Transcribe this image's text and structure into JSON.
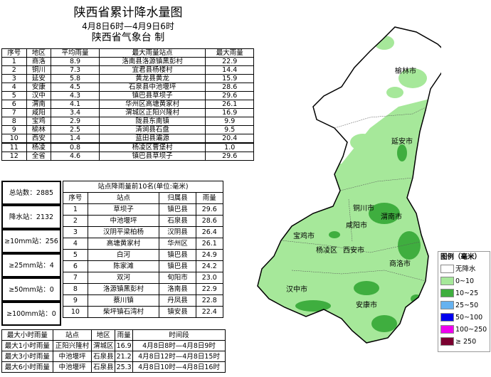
{
  "title": "陕西省累计降水量图",
  "period": "4月8日6时—4月9日6时",
  "producer": "陕西省气象台  制",
  "summary": {
    "headers": [
      "序号",
      "地区",
      "平均雨量",
      "最大雨量站点",
      "最大雨量"
    ],
    "rows": [
      [
        "1",
        "商洛",
        "8.9",
        "洛南县洛源镇黑彭村",
        "22.9"
      ],
      [
        "2",
        "铜川",
        "7.3",
        "宜君县杨楼村",
        "14.4"
      ],
      [
        "3",
        "延安",
        "5.8",
        "黄龙县黄龙",
        "15.9"
      ],
      [
        "4",
        "安康",
        "4.5",
        "石泉县中池堰坪",
        "28.6"
      ],
      [
        "5",
        "汉中",
        "4.3",
        "镇巴县草坝子",
        "29.6"
      ],
      [
        "6",
        "渭南",
        "4.1",
        "华州区高塘黄家村",
        "26.1"
      ],
      [
        "7",
        "咸阳",
        "3.4",
        "渭城区正阳兴隆村",
        "16.9"
      ],
      [
        "8",
        "宝鸡",
        "2.9",
        "陇县东南镇",
        "9.9"
      ],
      [
        "9",
        "榆林",
        "2.5",
        "清涧县石盘",
        "9.5"
      ],
      [
        "10",
        "西安",
        "1.4",
        "蓝田县灞源",
        "20.4"
      ],
      [
        "11",
        "杨凌",
        "0.8",
        "杨凌区曹堡村",
        "1.0"
      ],
      [
        "12",
        "全省",
        "4.6",
        "镇巴县草坝子",
        "29.6"
      ]
    ]
  },
  "stats": [
    "总站数：2885",
    "降水站：2132",
    "≥10mm站：256",
    "≥25mm站：4",
    "≥50mm站：0",
    "≥100mm站：0"
  ],
  "top10": {
    "caption": "站点降雨量前10名(单位:毫米)",
    "headers": [
      "序号",
      "站点",
      "归属县",
      "雨量"
    ],
    "rows": [
      [
        "1",
        "草坝子",
        "镇巴县",
        "29.6"
      ],
      [
        "2",
        "中池堰坪",
        "石泉县",
        "28.6"
      ],
      [
        "3",
        "汉阴平梁柏杨",
        "汉阴县",
        "26.4"
      ],
      [
        "4",
        "高塘黄家村",
        "华州区",
        "26.1"
      ],
      [
        "5",
        "白河",
        "镇巴县",
        "24.9"
      ],
      [
        "6",
        "陈家滩",
        "镇巴县",
        "24.2"
      ],
      [
        "7",
        "双河",
        "旬阳市",
        "23.0"
      ],
      [
        "8",
        "洛源镇黑彭村",
        "洛南县",
        "22.9"
      ],
      [
        "9",
        "蔡川镇",
        "丹凤县",
        "22.8"
      ],
      [
        "10",
        "柴坪镇石湾村",
        "镇安县",
        "22.4"
      ]
    ]
  },
  "max_hourly": {
    "headers": [
      "最大小时雨量",
      "站点",
      "地区",
      "雨量",
      "时间段"
    ],
    "rows": [
      [
        "最大1小时雨量",
        "正阳兴隆村",
        "渭城区",
        "16.9",
        "4月8日8时—4月8日9时"
      ],
      [
        "最大3小时雨量",
        "中池堰坪",
        "石泉县",
        "21.2",
        "4月8日12时—4月8日15时"
      ],
      [
        "最大6小时雨量",
        "中池堰坪",
        "石泉县",
        "25.3",
        "4月8日10时—4月8日16时"
      ]
    ]
  },
  "map": {
    "cities": [
      "榆林市",
      "延安市",
      "铜川市",
      "渭南市",
      "咸阳市",
      "宝鸡市",
      "杨凌区",
      "西安市",
      "汉中市",
      "商洛市",
      "安康市"
    ]
  },
  "legend": {
    "title": "图例（毫米）",
    "items": [
      {
        "label": "无降水",
        "color": "#ffffff"
      },
      {
        "label": "0~10",
        "color": "#a6e89a"
      },
      {
        "label": "10~25",
        "color": "#3fae3f"
      },
      {
        "label": "25~50",
        "color": "#66b2f0"
      },
      {
        "label": "50~100",
        "color": "#0000ee"
      },
      {
        "label": "100~250",
        "color": "#ee00ee"
      },
      {
        "label": "≥ 250",
        "color": "#7a0030"
      }
    ]
  }
}
